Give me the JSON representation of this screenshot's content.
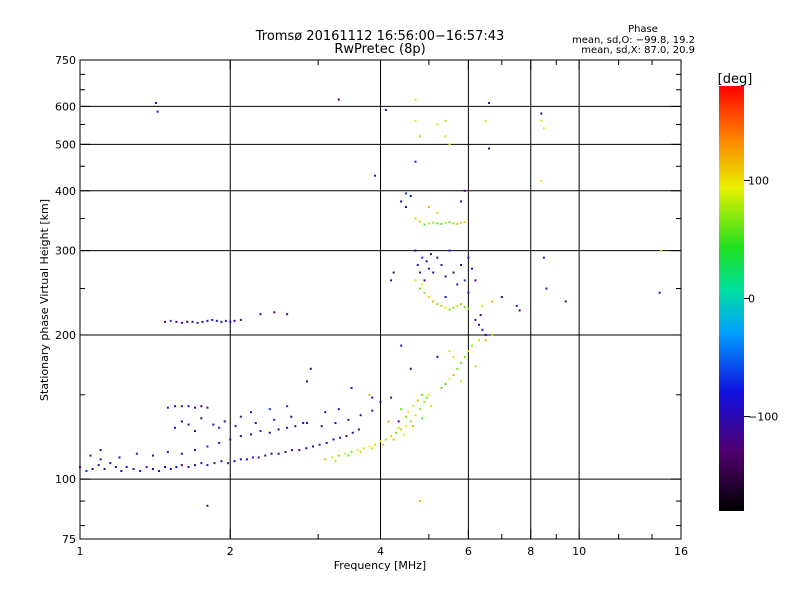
{
  "chart_data": {
    "type": "scatter",
    "title": "Tromsø 20161112 16:56:00−16:57:43",
    "subtitle": "RwPretec (8p)",
    "xlabel": "Frequency [MHz]",
    "ylabel": "Stationary phase Virtual Height [km]",
    "x_scale": "log",
    "y_scale": "log",
    "xlim": [
      1,
      16
    ],
    "ylim": [
      75,
      750
    ],
    "x_ticks": [
      1,
      2,
      4,
      6,
      8,
      10,
      16
    ],
    "x_minor_ticks": [
      3,
      5,
      7,
      9,
      12,
      14
    ],
    "y_ticks": [
      75,
      100,
      200,
      300,
      400,
      500,
      600,
      750
    ],
    "y_minor_ticks": [
      80,
      90,
      150,
      250,
      350,
      450,
      550,
      650,
      700
    ],
    "grid_x": [
      2,
      4,
      6,
      8,
      10
    ],
    "grid_y": [
      100,
      200,
      300,
      400,
      500,
      600
    ],
    "grid": true,
    "phase_stats": {
      "title": "Phase",
      "line1": "mean, sd,O: −99.8, 19.2",
      "line2": "mean, sd,X:  87.0, 20.9"
    },
    "colorbar": {
      "label": "[deg]",
      "range": [
        -180,
        180
      ],
      "ticks": [
        100,
        0,
        -100
      ],
      "tick_labels": [
        "100",
        "0",
        "−100"
      ]
    },
    "series": [
      {
        "mode": "O",
        "phase_mean": -99.8,
        "phase_sd": 19.2,
        "points": [
          [
            1.0,
            106
          ],
          [
            1.03,
            104
          ],
          [
            1.06,
            105
          ],
          [
            1.09,
            107
          ],
          [
            1.12,
            105
          ],
          [
            1.15,
            108
          ],
          [
            1.18,
            106
          ],
          [
            1.21,
            104
          ],
          [
            1.24,
            106
          ],
          [
            1.28,
            105
          ],
          [
            1.32,
            104
          ],
          [
            1.36,
            106
          ],
          [
            1.4,
            105
          ],
          [
            1.44,
            104
          ],
          [
            1.48,
            106
          ],
          [
            1.52,
            105
          ],
          [
            1.56,
            106
          ],
          [
            1.6,
            107
          ],
          [
            1.65,
            106
          ],
          [
            1.7,
            107
          ],
          [
            1.75,
            108
          ],
          [
            1.8,
            107
          ],
          [
            1.86,
            108
          ],
          [
            1.92,
            109
          ],
          [
            1.98,
            108
          ],
          [
            2.04,
            109
          ],
          [
            2.1,
            110
          ],
          [
            2.16,
            110
          ],
          [
            2.22,
            111
          ],
          [
            2.28,
            111
          ],
          [
            2.35,
            112
          ],
          [
            2.42,
            113
          ],
          [
            2.5,
            113
          ],
          [
            2.58,
            114
          ],
          [
            2.66,
            115
          ],
          [
            2.75,
            115
          ],
          [
            2.84,
            116
          ],
          [
            2.93,
            117
          ],
          [
            3.02,
            118
          ],
          [
            3.12,
            119
          ],
          [
            3.22,
            121
          ],
          [
            3.32,
            122
          ],
          [
            3.42,
            123
          ],
          [
            3.52,
            125
          ],
          [
            3.62,
            127
          ],
          [
            1.05,
            112
          ],
          [
            1.1,
            110
          ],
          [
            1.2,
            111
          ],
          [
            1.3,
            113
          ],
          [
            1.4,
            112
          ],
          [
            1.5,
            114
          ],
          [
            1.6,
            113
          ],
          [
            1.7,
            115
          ],
          [
            1.8,
            117
          ],
          [
            1.9,
            119
          ],
          [
            2.0,
            121
          ],
          [
            2.1,
            123
          ],
          [
            2.2,
            124
          ],
          [
            2.3,
            126
          ],
          [
            2.4,
            125
          ],
          [
            2.5,
            127
          ],
          [
            2.6,
            128
          ],
          [
            2.7,
            129
          ],
          [
            2.8,
            131
          ],
          [
            1.55,
            128
          ],
          [
            1.6,
            132
          ],
          [
            1.65,
            130
          ],
          [
            1.75,
            134
          ],
          [
            1.85,
            130
          ],
          [
            1.95,
            132
          ],
          [
            2.05,
            129
          ],
          [
            2.25,
            131
          ],
          [
            2.45,
            133
          ],
          [
            2.65,
            135
          ],
          [
            2.85,
            131
          ],
          [
            3.05,
            129
          ],
          [
            3.25,
            131
          ],
          [
            3.45,
            133
          ],
          [
            3.65,
            136
          ],
          [
            3.85,
            139
          ],
          [
            1.5,
            141
          ],
          [
            1.55,
            142
          ],
          [
            1.6,
            142
          ],
          [
            1.65,
            142
          ],
          [
            1.7,
            141
          ],
          [
            1.75,
            142
          ],
          [
            1.8,
            141
          ],
          [
            1.48,
            213
          ],
          [
            1.52,
            214
          ],
          [
            1.56,
            213
          ],
          [
            1.6,
            212
          ],
          [
            1.64,
            213
          ],
          [
            1.68,
            213
          ],
          [
            1.72,
            212
          ],
          [
            1.76,
            213
          ],
          [
            1.8,
            214
          ],
          [
            1.84,
            215
          ],
          [
            1.88,
            214
          ],
          [
            1.92,
            213
          ],
          [
            1.96,
            214
          ],
          [
            2.0,
            213
          ],
          [
            2.04,
            214
          ],
          [
            2.1,
            215
          ],
          [
            2.3,
            221
          ],
          [
            2.45,
            223
          ],
          [
            2.6,
            221
          ],
          [
            4.4,
            380
          ],
          [
            4.5,
            370
          ],
          [
            4.6,
            390
          ],
          [
            4.7,
            300
          ],
          [
            4.75,
            280
          ],
          [
            4.8,
            270
          ],
          [
            4.85,
            290
          ],
          [
            4.9,
            260
          ],
          [
            4.95,
            285
          ],
          [
            5.0,
            275
          ],
          [
            5.05,
            295
          ],
          [
            5.1,
            270
          ],
          [
            5.2,
            290
          ],
          [
            5.3,
            280
          ],
          [
            5.4,
            265
          ],
          [
            5.5,
            300
          ],
          [
            5.6,
            270
          ],
          [
            5.7,
            255
          ],
          [
            5.8,
            280
          ],
          [
            5.9,
            260
          ],
          [
            6.0,
            245
          ],
          [
            6.1,
            275
          ],
          [
            6.2,
            260
          ],
          [
            4.2,
            260
          ],
          [
            4.25,
            270
          ],
          [
            5.8,
            380
          ],
          [
            5.9,
            400
          ],
          [
            6.2,
            215
          ],
          [
            6.3,
            210
          ],
          [
            6.4,
            205
          ],
          [
            6.5,
            200
          ],
          [
            6.35,
            220
          ],
          [
            7.0,
            240
          ],
          [
            7.5,
            230
          ],
          [
            7.6,
            225
          ],
          [
            1.42,
            610
          ],
          [
            1.43,
            585
          ],
          [
            3.3,
            620
          ],
          [
            3.9,
            430
          ],
          [
            4.1,
            590
          ],
          [
            4.5,
            395
          ],
          [
            4.7,
            460
          ],
          [
            6.6,
            610
          ],
          [
            6.6,
            490
          ],
          [
            8.4,
            580
          ],
          [
            8.5,
            290
          ],
          [
            8.6,
            250
          ],
          [
            9.4,
            235
          ],
          [
            14.5,
            245
          ],
          [
            4.6,
            170
          ],
          [
            4.4,
            190
          ],
          [
            2.9,
            170
          ],
          [
            2.85,
            160
          ],
          [
            3.5,
            155
          ],
          [
            3.85,
            148
          ],
          [
            4.0,
            145
          ],
          [
            4.2,
            148
          ],
          [
            4.35,
            132
          ],
          [
            2.1,
            135
          ],
          [
            2.2,
            138
          ],
          [
            2.4,
            140
          ],
          [
            2.6,
            142
          ],
          [
            3.1,
            138
          ],
          [
            3.3,
            140
          ],
          [
            1.9,
            128
          ],
          [
            1.7,
            126
          ],
          [
            1.1,
            115
          ],
          [
            1.8,
            88
          ],
          [
            5.2,
            180
          ],
          [
            5.4,
            240
          ],
          [
            6.0,
            290
          ]
        ]
      },
      {
        "mode": "X",
        "phase_mean": 87.0,
        "phase_sd": 20.9,
        "points": [
          [
            3.1,
            110
          ],
          [
            3.2,
            111
          ],
          [
            3.3,
            112
          ],
          [
            3.4,
            113
          ],
          [
            3.5,
            114
          ],
          [
            3.6,
            115
          ],
          [
            3.7,
            116
          ],
          [
            3.8,
            117
          ],
          [
            3.9,
            118
          ],
          [
            4.0,
            120
          ],
          [
            4.1,
            121
          ],
          [
            4.2,
            123
          ],
          [
            4.3,
            125
          ],
          [
            4.4,
            127
          ],
          [
            4.5,
            129
          ],
          [
            4.6,
            132
          ],
          [
            4.7,
            136
          ],
          [
            4.8,
            140
          ],
          [
            4.9,
            145
          ],
          [
            5.0,
            150
          ],
          [
            3.25,
            109
          ],
          [
            3.45,
            112
          ],
          [
            3.65,
            114
          ],
          [
            3.85,
            116
          ],
          [
            4.05,
            118
          ],
          [
            4.25,
            121
          ],
          [
            4.45,
            124
          ],
          [
            4.65,
            129
          ],
          [
            4.85,
            134
          ],
          [
            5.05,
            142
          ],
          [
            4.55,
            138
          ],
          [
            4.65,
            142
          ],
          [
            4.75,
            146
          ],
          [
            4.85,
            150
          ],
          [
            4.95,
            148
          ],
          [
            4.4,
            140
          ],
          [
            4.5,
            135
          ],
          [
            5.3,
            155
          ],
          [
            5.4,
            158
          ],
          [
            5.5,
            162
          ],
          [
            5.6,
            165
          ],
          [
            5.7,
            170
          ],
          [
            5.8,
            175
          ],
          [
            5.9,
            180
          ],
          [
            6.0,
            185
          ],
          [
            6.1,
            190
          ],
          [
            6.3,
            195
          ],
          [
            6.5,
            195
          ],
          [
            6.7,
            200
          ],
          [
            5.5,
            185
          ],
          [
            5.6,
            180
          ],
          [
            5.8,
            160
          ],
          [
            6.2,
            172
          ],
          [
            4.8,
            250
          ],
          [
            4.9,
            245
          ],
          [
            5.0,
            240
          ],
          [
            5.1,
            235
          ],
          [
            5.2,
            232
          ],
          [
            5.3,
            230
          ],
          [
            5.4,
            228
          ],
          [
            5.5,
            226
          ],
          [
            5.6,
            228
          ],
          [
            5.7,
            230
          ],
          [
            5.8,
            232
          ],
          [
            5.9,
            229
          ],
          [
            6.0,
            227
          ],
          [
            4.7,
            260
          ],
          [
            4.85,
            255
          ],
          [
            6.4,
            230
          ],
          [
            6.7,
            235
          ],
          [
            4.9,
            340
          ],
          [
            5.0,
            342
          ],
          [
            5.1,
            343
          ],
          [
            5.2,
            342
          ],
          [
            5.3,
            341
          ],
          [
            5.4,
            343
          ],
          [
            5.5,
            344
          ],
          [
            5.6,
            342
          ],
          [
            5.7,
            341
          ],
          [
            5.8,
            343
          ],
          [
            5.9,
            344
          ],
          [
            4.7,
            350
          ],
          [
            4.8,
            345
          ],
          [
            5.0,
            370
          ],
          [
            5.2,
            360
          ],
          [
            4.7,
            620
          ],
          [
            4.7,
            560
          ],
          [
            4.8,
            520
          ],
          [
            5.2,
            550
          ],
          [
            5.4,
            560
          ],
          [
            5.4,
            520
          ],
          [
            5.5,
            500
          ],
          [
            6.5,
            560
          ],
          [
            8.4,
            560
          ],
          [
            8.5,
            540
          ],
          [
            8.4,
            420
          ],
          [
            4.8,
            90
          ],
          [
            3.8,
            150
          ],
          [
            4.15,
            132
          ],
          [
            4.35,
            128
          ],
          [
            14.6,
            300
          ]
        ]
      }
    ]
  }
}
